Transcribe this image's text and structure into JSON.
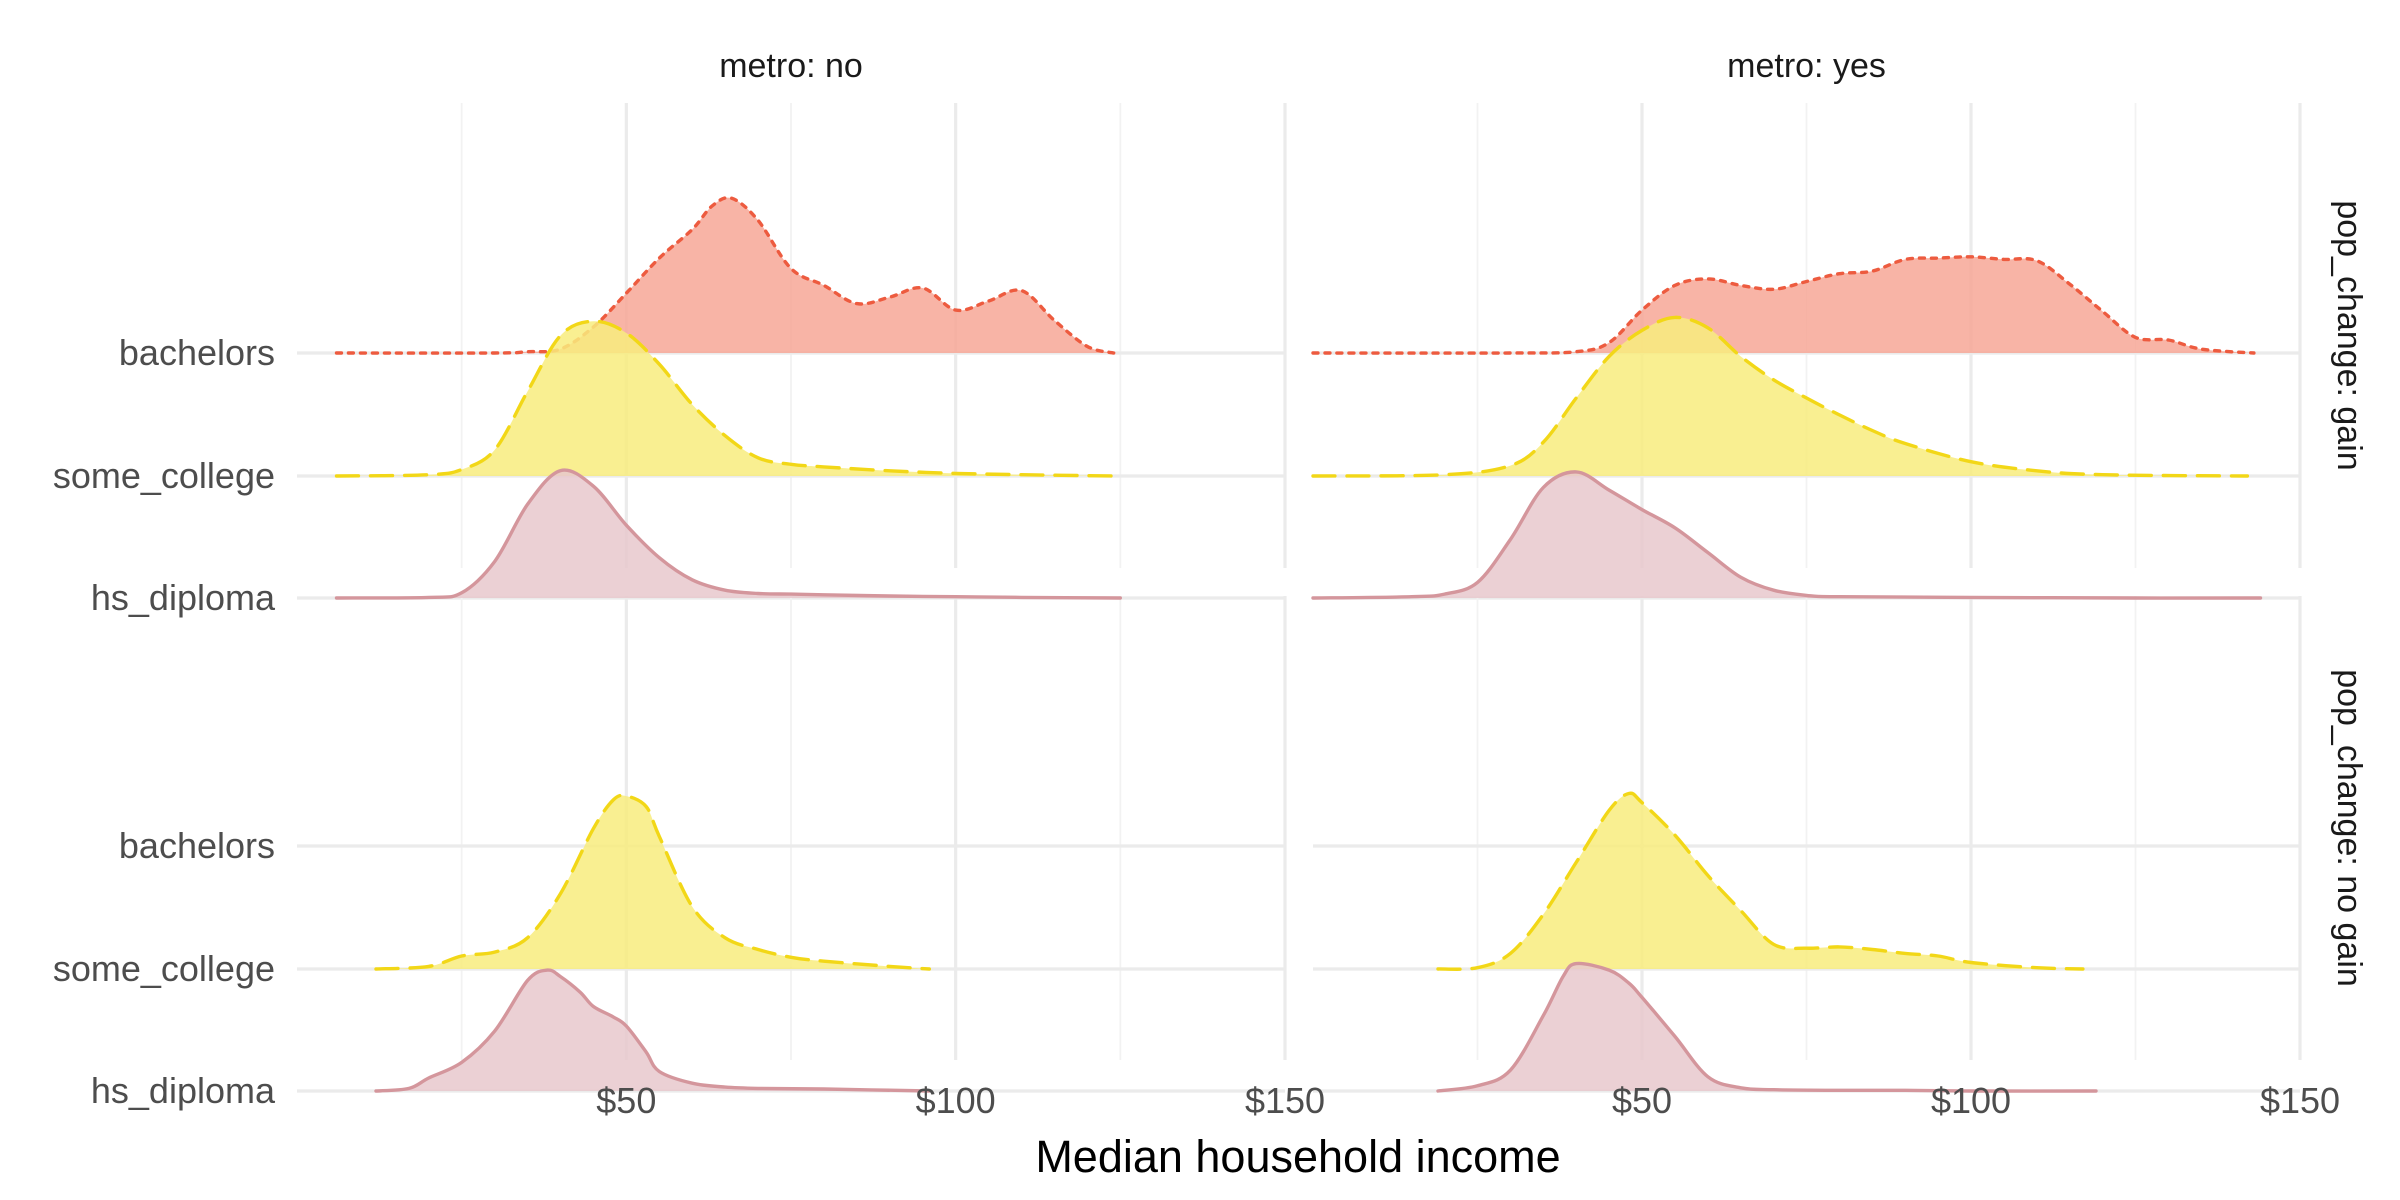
{
  "chart_data": {
    "type": "ridgeline",
    "xlabel": "Median household income",
    "x_ticks": [
      50,
      100,
      150
    ],
    "x_tick_labels": [
      "$50",
      "$100",
      "$150"
    ],
    "x_minor_ticks": [
      25,
      75,
      125
    ],
    "categories": [
      "hs_diploma",
      "some_college",
      "bachelors"
    ],
    "columns": [
      {
        "label": "metro: no",
        "xlim": [
          0,
          150
        ]
      },
      {
        "label": "metro: yes",
        "xlim": [
          0,
          150
        ]
      }
    ],
    "rows": [
      {
        "label": "pop_change: gain"
      },
      {
        "label": "pop_change: no gain"
      }
    ],
    "colors": {
      "hs_diploma": {
        "line": "#d4969c",
        "fill": "#e8c8cc",
        "dash": "solid"
      },
      "some_college": {
        "line": "#f2d717",
        "fill": "#f8ec7e",
        "dash": "dashed"
      },
      "bachelors": {
        "line": "#ed5b3f",
        "fill": "#f7a797",
        "dash": "dotted"
      }
    },
    "panels": [
      {
        "row": 0,
        "col": 0,
        "series": [
          {
            "name": "hs_diploma",
            "x": [
              6,
              20,
              25,
              30,
              35,
              40,
              45,
              50,
              55,
              60,
              65,
              70,
              75,
              80,
              90,
              100,
              110,
              125
            ],
            "y": [
              0,
              0.005,
              0.04,
              0.28,
              0.72,
              0.98,
              0.86,
              0.56,
              0.31,
              0.14,
              0.06,
              0.035,
              0.03,
              0.025,
              0.015,
              0.01,
              0.005,
              0
            ]
          },
          {
            "name": "some_college",
            "x": [
              6,
              20,
              25,
              30,
              35,
              40,
              45,
              50,
              55,
              60,
              65,
              70,
              75,
              80,
              90,
              100,
              110,
              124
            ],
            "y": [
              0,
              0.01,
              0.05,
              0.2,
              0.65,
              1.08,
              1.19,
              1.1,
              0.86,
              0.55,
              0.31,
              0.14,
              0.09,
              0.07,
              0.04,
              0.02,
              0.01,
              0
            ]
          },
          {
            "name": "bachelors",
            "x": [
              6,
              30,
              35,
              40,
              45,
              50,
              55,
              60,
              63,
              66,
              70,
              75,
              80,
              85,
              90,
              95,
              100,
              105,
              110,
              115,
              120,
              124
            ],
            "y": [
              0,
              0,
              0.01,
              0.03,
              0.2,
              0.46,
              0.73,
              0.95,
              1.13,
              1.19,
              1.02,
              0.65,
              0.52,
              0.38,
              0.43,
              0.5,
              0.33,
              0.4,
              0.48,
              0.25,
              0.05,
              0
            ]
          }
        ]
      },
      {
        "row": 0,
        "col": 1,
        "series": [
          {
            "name": "hs_diploma",
            "x": [
              0,
              15,
              20,
              25,
              30,
              35,
              40,
              45,
              50,
              55,
              60,
              65,
              70,
              75,
              80,
              100,
              125,
              144
            ],
            "y": [
              0,
              0.01,
              0.03,
              0.12,
              0.45,
              0.85,
              0.97,
              0.83,
              0.68,
              0.54,
              0.35,
              0.16,
              0.06,
              0.02,
              0.01,
              0.005,
              0,
              0
            ]
          },
          {
            "name": "some_college",
            "x": [
              0,
              20,
              30,
              35,
              40,
              45,
              50,
              55,
              60,
              65,
              70,
              75,
              80,
              85,
              90,
              100,
              110,
              120,
              142
            ],
            "y": [
              0,
              0.01,
              0.08,
              0.26,
              0.6,
              0.92,
              1.12,
              1.22,
              1.14,
              0.92,
              0.74,
              0.6,
              0.47,
              0.35,
              0.25,
              0.11,
              0.04,
              0.01,
              0
            ]
          },
          {
            "name": "bachelors",
            "x": [
              0,
              30,
              40,
              45,
              50,
              55,
              60,
              65,
              70,
              75,
              80,
              85,
              90,
              95,
              100,
              105,
              110,
              115,
              120,
              125,
              130,
              135,
              143
            ],
            "y": [
              0,
              0,
              0.01,
              0.08,
              0.33,
              0.52,
              0.57,
              0.52,
              0.49,
              0.55,
              0.61,
              0.63,
              0.72,
              0.73,
              0.74,
              0.72,
              0.71,
              0.53,
              0.32,
              0.12,
              0.1,
              0.03,
              0
            ]
          }
        ]
      },
      {
        "row": 1,
        "col": 0,
        "series": [
          {
            "name": "hs_diploma",
            "x": [
              12,
              17,
              20,
              25,
              30,
              35,
              38,
              40,
              43,
              45,
              48,
              50,
              53,
              55,
              60,
              65,
              70,
              80,
              96
            ],
            "y": [
              0,
              0.02,
              0.1,
              0.22,
              0.46,
              0.85,
              0.93,
              0.88,
              0.76,
              0.65,
              0.57,
              0.5,
              0.3,
              0.15,
              0.06,
              0.03,
              0.02,
              0.015,
              0
            ]
          },
          {
            "name": "some_college",
            "x": [
              12,
              20,
              25,
              30,
              35,
              40,
              45,
              48,
              50,
              53,
              55,
              60,
              65,
              70,
              75,
              80,
              90,
              96
            ],
            "y": [
              0,
              0.02,
              0.1,
              0.13,
              0.24,
              0.58,
              1.08,
              1.3,
              1.33,
              1.25,
              1.02,
              0.48,
              0.24,
              0.15,
              0.09,
              0.06,
              0.02,
              0
            ]
          },
          {
            "name": "bachelors",
            "x": [],
            "y": []
          }
        ]
      },
      {
        "row": 1,
        "col": 1,
        "series": [
          {
            "name": "hs_diploma",
            "x": [
              19,
              25,
              30,
              35,
              38,
              40,
              45,
              48,
              50,
              55,
              60,
              65,
              70,
              80,
              90,
              100,
              119
            ],
            "y": [
              0,
              0.04,
              0.16,
              0.58,
              0.88,
              0.98,
              0.93,
              0.83,
              0.72,
              0.42,
              0.11,
              0.025,
              0.01,
              0.005,
              0.005,
              0,
              0
            ]
          },
          {
            "name": "some_college",
            "x": [
              19,
              25,
              30,
              35,
              40,
              45,
              48,
              50,
              55,
              60,
              65,
              70,
              75,
              80,
              85,
              90,
              95,
              100,
              110,
              117
            ],
            "y": [
              0,
              0.01,
              0.12,
              0.42,
              0.82,
              1.22,
              1.35,
              1.28,
              1.03,
              0.72,
              0.45,
              0.19,
              0.16,
              0.17,
              0.15,
              0.12,
              0.1,
              0.05,
              0.01,
              0
            ]
          },
          {
            "name": "bachelors",
            "x": [],
            "y": []
          }
        ]
      }
    ]
  }
}
